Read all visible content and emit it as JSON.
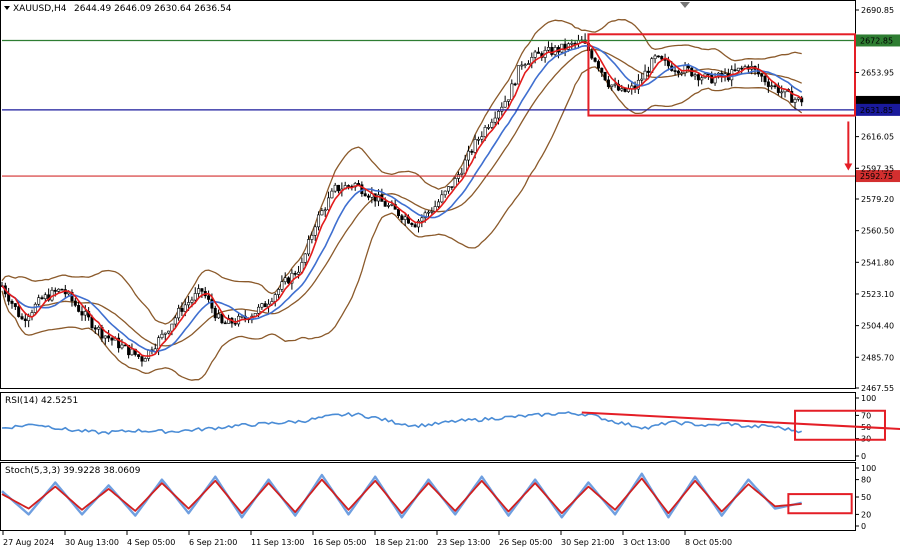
{
  "colors": {
    "bull_candle": "#000000",
    "bear_candle": "#000000",
    "ma_fast": "#e31b1b",
    "ma_slow": "#3f6fd0",
    "bollinger": "#8b5a2b",
    "level_green": "#2e7d32",
    "level_blue": "#1a1a9c",
    "level_red": "#d32f2f",
    "annotation": "#e41e26",
    "rsi_line": "#4a8cd6",
    "stoch_main": "#6f9fe0",
    "stoch_signal": "#d11f1f"
  },
  "header": {
    "symbol": "XAUUSD,H4",
    "ohlc": "2644.49 2646.09 2630.64 2636.54"
  },
  "rsi_panel": {
    "label": "RSI(14) 42.5251"
  },
  "stoch_panel": {
    "label": "Stoch(5,3,3) 39.9228 38.0609"
  },
  "chart_data": [
    {
      "type": "candlestick",
      "title": "XAUUSD,H4",
      "yscale": "linear",
      "ylim": [
        2467.55,
        2690.85
      ],
      "yticks": [
        2690.85,
        2653.95,
        2616.05,
        2597.35,
        2579.2,
        2560.5,
        2541.8,
        2523.1,
        2504.4,
        2485.7,
        2467.55
      ],
      "ytick_labels": [
        "2690.85",
        "2653.95",
        "2616.05",
        "2597.35",
        "2579.20",
        "2560.50",
        "2541.80",
        "2523.10",
        "2504.40",
        "2485.70",
        "2467.55"
      ],
      "x_labels": [
        "27 Aug 2024",
        "30 Aug 13:00",
        "4 Sep 05:00",
        "6 Sep 21:00",
        "11 Sep 13:00",
        "16 Sep 05:00",
        "18 Sep 21:00",
        "23 Sep 13:00",
        "26 Sep 05:00",
        "30 Sep 21:00",
        "3 Oct 13:00",
        "8 Oct 05:00"
      ],
      "price_path": [
        [
          0,
          2528
        ],
        [
          6,
          2508
        ],
        [
          12,
          2520
        ],
        [
          18,
          2526
        ],
        [
          24,
          2512
        ],
        [
          30,
          2500
        ],
        [
          36,
          2492
        ],
        [
          42,
          2485
        ],
        [
          48,
          2498
        ],
        [
          54,
          2515
        ],
        [
          60,
          2525
        ],
        [
          66,
          2505
        ],
        [
          72,
          2508
        ],
        [
          78,
          2515
        ],
        [
          84,
          2528
        ],
        [
          90,
          2540
        ],
        [
          94,
          2565
        ],
        [
          100,
          2585
        ],
        [
          106,
          2588
        ],
        [
          112,
          2580
        ],
        [
          118,
          2572
        ],
        [
          124,
          2565
        ],
        [
          130,
          2575
        ],
        [
          136,
          2590
        ],
        [
          142,
          2612
        ],
        [
          148,
          2630
        ],
        [
          152,
          2640
        ],
        [
          156,
          2660
        ],
        [
          162,
          2665
        ],
        [
          168,
          2668
        ],
        [
          174,
          2672
        ],
        [
          178,
          2662
        ],
        [
          182,
          2648
        ],
        [
          186,
          2642
        ],
        [
          190,
          2645
        ],
        [
          196,
          2662
        ],
        [
          200,
          2658
        ],
        [
          206,
          2655
        ],
        [
          212,
          2650
        ],
        [
          218,
          2652
        ],
        [
          224,
          2658
        ],
        [
          230,
          2648
        ],
        [
          236,
          2640
        ],
        [
          240,
          2636.54
        ]
      ],
      "levels": [
        {
          "name": "resistance",
          "value": 2672.85,
          "label": "2672.85",
          "color": "#2e7d32"
        },
        {
          "name": "current-price",
          "value": 2636.54,
          "label": "2636.54",
          "color": "#000000"
        },
        {
          "name": "support",
          "value": 2631.85,
          "label": "2631.85",
          "color": "#1a1a9c"
        },
        {
          "name": "target",
          "value": 2592.75,
          "label": "2592.75",
          "color": "#d32f2f"
        }
      ],
      "annotations": [
        {
          "type": "rectangle",
          "x": [
            176,
            256
          ],
          "y": [
            2628.5,
            2676.5
          ]
        },
        {
          "type": "arrow",
          "direction": "down",
          "from": 2625,
          "to": 2596
        }
      ]
    },
    {
      "type": "line",
      "title": "RSI(14) 42.5251",
      "ylim": [
        0,
        100
      ],
      "yticks": [
        100,
        70,
        50,
        30,
        0
      ],
      "ytick_labels": [
        "100",
        "70",
        "50",
        "30",
        "0"
      ],
      "series": [
        {
          "values": [
            [
              0,
              48
            ],
            [
              10,
              55
            ],
            [
              20,
              45
            ],
            [
              30,
              40
            ],
            [
              40,
              44
            ],
            [
              50,
              42
            ],
            [
              60,
              46
            ],
            [
              70,
              52
            ],
            [
              80,
              56
            ],
            [
              90,
              60
            ],
            [
              100,
              70
            ],
            [
              106,
              72
            ],
            [
              112,
              66
            ],
            [
              118,
              58
            ],
            [
              124,
              52
            ],
            [
              130,
              55
            ],
            [
              136,
              60
            ],
            [
              142,
              62
            ],
            [
              150,
              66
            ],
            [
              160,
              70
            ],
            [
              168,
              74
            ],
            [
              176,
              72
            ],
            [
              182,
              62
            ],
            [
              188,
              54
            ],
            [
              194,
              48
            ],
            [
              200,
              58
            ],
            [
              206,
              56
            ],
            [
              212,
              52
            ],
            [
              218,
              56
            ],
            [
              224,
              50
            ],
            [
              230,
              52
            ],
            [
              236,
              46
            ],
            [
              240,
              42.5251
            ]
          ]
        }
      ],
      "annotations": [
        {
          "type": "trendline",
          "from": [
            174,
            75
          ],
          "to": [
            275,
            45
          ]
        },
        {
          "type": "rectangle",
          "x": [
            238,
            265
          ],
          "y": [
            28,
            78
          ]
        }
      ]
    },
    {
      "type": "line",
      "title": "Stoch(5,3,3) 39.9228 38.0609",
      "ylim": [
        0,
        100
      ],
      "yticks": [
        100,
        80,
        50,
        20,
        0
      ],
      "ytick_labels": [
        "100",
        "80",
        "50",
        "20",
        "0"
      ],
      "series": [
        {
          "values": [
            [
              0,
              60
            ],
            [
              8,
              20
            ],
            [
              16,
              75
            ],
            [
              24,
              20
            ],
            [
              32,
              70
            ],
            [
              40,
              18
            ],
            [
              48,
              80
            ],
            [
              56,
              22
            ],
            [
              64,
              85
            ],
            [
              72,
              15
            ],
            [
              80,
              80
            ],
            [
              88,
              18
            ],
            [
              96,
              88
            ],
            [
              104,
              20
            ],
            [
              112,
              85
            ],
            [
              120,
              15
            ],
            [
              128,
              80
            ],
            [
              136,
              20
            ],
            [
              144,
              85
            ],
            [
              152,
              18
            ],
            [
              160,
              80
            ],
            [
              168,
              15
            ],
            [
              176,
              75
            ],
            [
              184,
              20
            ],
            [
              192,
              90
            ],
            [
              200,
              15
            ],
            [
              208,
              85
            ],
            [
              216,
              18
            ],
            [
              224,
              80
            ],
            [
              232,
              30
            ],
            [
              240,
              39.9228
            ]
          ]
        },
        {
          "values": [
            [
              0,
              55
            ],
            [
              8,
              30
            ],
            [
              16,
              68
            ],
            [
              24,
              28
            ],
            [
              32,
              64
            ],
            [
              40,
              26
            ],
            [
              48,
              74
            ],
            [
              56,
              30
            ],
            [
              64,
              78
            ],
            [
              72,
              22
            ],
            [
              80,
              74
            ],
            [
              88,
              24
            ],
            [
              96,
              80
            ],
            [
              104,
              28
            ],
            [
              112,
              78
            ],
            [
              120,
              22
            ],
            [
              128,
              74
            ],
            [
              136,
              26
            ],
            [
              144,
              78
            ],
            [
              152,
              25
            ],
            [
              160,
              74
            ],
            [
              168,
              22
            ],
            [
              176,
              68
            ],
            [
              184,
              28
            ],
            [
              192,
              82
            ],
            [
              200,
              22
            ],
            [
              208,
              78
            ],
            [
              216,
              25
            ],
            [
              224,
              72
            ],
            [
              232,
              34
            ],
            [
              240,
              38.0609
            ]
          ]
        }
      ],
      "annotations": [
        {
          "type": "rectangle",
          "x": [
            236,
            255
          ],
          "y": [
            22,
            55
          ]
        }
      ]
    }
  ]
}
